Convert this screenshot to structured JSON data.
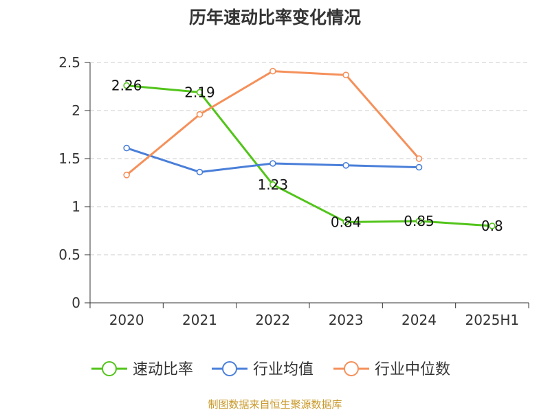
{
  "chart_data": {
    "type": "line",
    "title": "历年速动比率变化情况",
    "categories": [
      "2020",
      "2021",
      "2022",
      "2023",
      "2024",
      "2025H1"
    ],
    "ylim": [
      0,
      2.5
    ],
    "yticks": [
      "0",
      "0.5",
      "1",
      "1.5",
      "2",
      "2.5"
    ],
    "ytick_values": [
      0,
      0.5,
      1,
      1.5,
      2,
      2.5
    ],
    "grid": "horizontal dashed",
    "legend_position": "bottom",
    "series": [
      {
        "name": "速动比率",
        "color": "#52c41a",
        "show_labels": true,
        "values": [
          2.26,
          2.19,
          1.23,
          0.84,
          0.85,
          0.8
        ],
        "labels": [
          "2.26",
          "2.19",
          "1.23",
          "0.84",
          "0.85",
          "0.8"
        ]
      },
      {
        "name": "行业均值",
        "color": "#4a7fd9",
        "show_labels": false,
        "values": [
          1.61,
          1.36,
          1.45,
          1.43,
          1.41,
          null
        ]
      },
      {
        "name": "行业中位数",
        "color": "#f5905a",
        "show_labels": false,
        "values": [
          1.33,
          1.96,
          2.41,
          2.37,
          1.5,
          null
        ]
      }
    ]
  },
  "source": "制图数据来自恒生聚源数据库"
}
